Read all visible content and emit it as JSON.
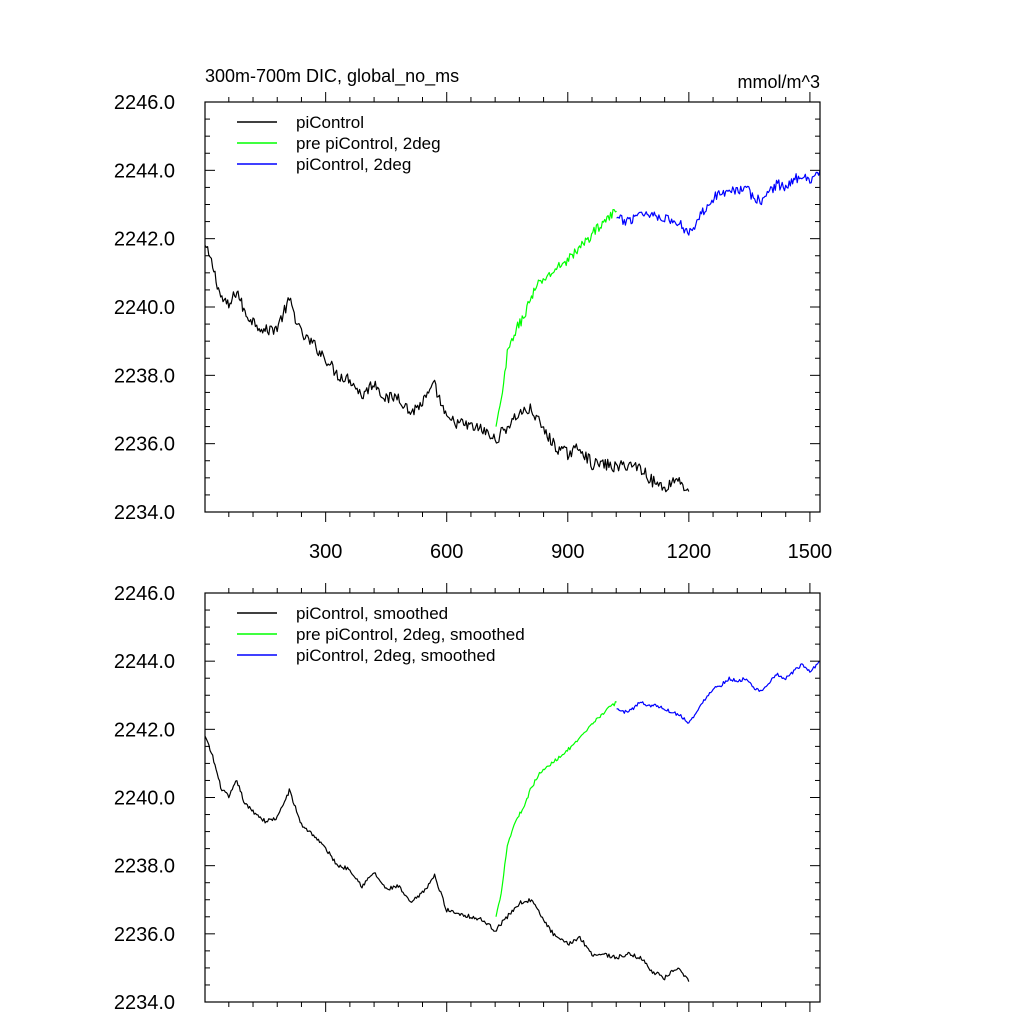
{
  "colors": {
    "piControl": "#000000",
    "pre_piControl_2deg": "#00ff00",
    "piControl_2deg": "#0000ff",
    "axis": "#000000"
  },
  "chart_data": [
    {
      "type": "line",
      "title": "300m-700m DIC, global_no_ms",
      "units": "mmol/m^3",
      "xlim": [
        1,
        1525
      ],
      "ylim": [
        2234.0,
        2246.0
      ],
      "xticks": [
        300,
        600,
        900,
        1200,
        1500
      ],
      "xtick_labels": [
        "300",
        "600",
        "900",
        "1200",
        "1500"
      ],
      "yticks": [
        2234.0,
        2236.0,
        2238.0,
        2240.0,
        2242.0,
        2244.0,
        2246.0
      ],
      "ytick_labels": [
        "2234.0",
        "2236.0",
        "2238.0",
        "2240.0",
        "2242.0",
        "2244.0",
        "2246.0"
      ],
      "legend_position": "top-left",
      "series": [
        {
          "name": "piControl",
          "color": "#000000",
          "x": [
            1,
            20,
            40,
            60,
            80,
            100,
            120,
            150,
            180,
            210,
            240,
            270,
            300,
            330,
            360,
            390,
            420,
            450,
            480,
            510,
            540,
            570,
            600,
            630,
            660,
            690,
            720,
            750,
            780,
            810,
            840,
            870,
            900,
            930,
            960,
            990,
            1020,
            1050,
            1080,
            1110,
            1140,
            1170,
            1200
          ],
          "y": [
            2241.8,
            2241.2,
            2240.3,
            2240.0,
            2240.5,
            2239.8,
            2239.6,
            2239.3,
            2239.4,
            2240.2,
            2239.2,
            2238.9,
            2238.5,
            2238.0,
            2237.9,
            2237.4,
            2237.8,
            2237.3,
            2237.4,
            2236.9,
            2237.2,
            2237.7,
            2236.7,
            2236.6,
            2236.5,
            2236.4,
            2236.1,
            2236.5,
            2236.9,
            2237.0,
            2236.4,
            2235.9,
            2235.7,
            2235.9,
            2235.4,
            2235.4,
            2235.3,
            2235.4,
            2235.3,
            2234.9,
            2234.7,
            2235.0,
            2234.6
          ],
          "noise": 0.35
        },
        {
          "name": "pre piControl, 2deg",
          "color": "#00ff00",
          "x": [
            722,
            735,
            750,
            770,
            790,
            810,
            830,
            860,
            890,
            920,
            950,
            980,
            1000,
            1021
          ],
          "y": [
            2236.5,
            2237.2,
            2238.6,
            2239.3,
            2239.7,
            2240.3,
            2240.7,
            2241.0,
            2241.3,
            2241.6,
            2242.0,
            2242.4,
            2242.6,
            2242.8
          ],
          "noise": 0.3
        },
        {
          "name": "piControl, 2deg",
          "color": "#0000ff",
          "x": [
            1021,
            1040,
            1060,
            1080,
            1100,
            1120,
            1140,
            1160,
            1180,
            1200,
            1220,
            1240,
            1260,
            1280,
            1300,
            1320,
            1340,
            1360,
            1380,
            1400,
            1420,
            1440,
            1460,
            1480,
            1500,
            1525
          ],
          "y": [
            2242.6,
            2242.5,
            2242.6,
            2242.8,
            2242.7,
            2242.7,
            2242.6,
            2242.5,
            2242.4,
            2242.2,
            2242.5,
            2242.9,
            2243.2,
            2243.3,
            2243.5,
            2243.4,
            2243.5,
            2243.2,
            2243.1,
            2243.4,
            2243.6,
            2243.5,
            2243.7,
            2243.9,
            2243.7,
            2244.0
          ],
          "noise": 0.3
        }
      ]
    },
    {
      "type": "line",
      "title": "",
      "units": "",
      "xlim": [
        1,
        1525
      ],
      "ylim": [
        2234.0,
        2246.0
      ],
      "xticks": [
        300,
        600,
        900,
        1200,
        1500
      ],
      "xtick_labels": [],
      "yticks": [
        2234.0,
        2236.0,
        2238.0,
        2240.0,
        2242.0,
        2244.0,
        2246.0
      ],
      "ytick_labels": [
        "2234.0",
        "2236.0",
        "2238.0",
        "2240.0",
        "2242.0",
        "2244.0",
        "2246.0"
      ],
      "legend_position": "top-left",
      "series": [
        {
          "name": "piControl, smoothed",
          "color": "#000000",
          "x": [
            1,
            20,
            40,
            60,
            80,
            100,
            120,
            150,
            180,
            210,
            240,
            270,
            300,
            330,
            360,
            390,
            420,
            450,
            480,
            510,
            540,
            570,
            600,
            630,
            660,
            690,
            720,
            750,
            780,
            810,
            840,
            870,
            900,
            930,
            960,
            990,
            1020,
            1050,
            1080,
            1110,
            1140,
            1170,
            1200
          ],
          "y": [
            2241.8,
            2241.2,
            2240.3,
            2240.0,
            2240.5,
            2239.8,
            2239.6,
            2239.3,
            2239.4,
            2240.2,
            2239.2,
            2238.9,
            2238.5,
            2238.0,
            2237.9,
            2237.4,
            2237.8,
            2237.3,
            2237.4,
            2236.9,
            2237.2,
            2237.7,
            2236.7,
            2236.6,
            2236.5,
            2236.4,
            2236.1,
            2236.5,
            2236.9,
            2237.0,
            2236.4,
            2235.9,
            2235.7,
            2235.9,
            2235.4,
            2235.4,
            2235.3,
            2235.4,
            2235.3,
            2234.9,
            2234.7,
            2235.0,
            2234.6
          ],
          "noise": 0.12
        },
        {
          "name": "pre piControl, 2deg, smoothed",
          "color": "#00ff00",
          "x": [
            722,
            735,
            750,
            770,
            790,
            810,
            830,
            860,
            890,
            920,
            950,
            980,
            1000,
            1021
          ],
          "y": [
            2236.5,
            2237.2,
            2238.6,
            2239.3,
            2239.7,
            2240.3,
            2240.7,
            2241.0,
            2241.3,
            2241.6,
            2242.0,
            2242.4,
            2242.6,
            2242.8
          ],
          "noise": 0.1
        },
        {
          "name": "piControl, 2deg, smoothed",
          "color": "#0000ff",
          "x": [
            1021,
            1040,
            1060,
            1080,
            1100,
            1120,
            1140,
            1160,
            1180,
            1200,
            1220,
            1240,
            1260,
            1280,
            1300,
            1320,
            1340,
            1360,
            1380,
            1400,
            1420,
            1440,
            1460,
            1480,
            1500,
            1525
          ],
          "y": [
            2242.6,
            2242.5,
            2242.6,
            2242.8,
            2242.7,
            2242.7,
            2242.6,
            2242.5,
            2242.4,
            2242.2,
            2242.5,
            2242.9,
            2243.2,
            2243.3,
            2243.5,
            2243.4,
            2243.5,
            2243.2,
            2243.1,
            2243.4,
            2243.6,
            2243.5,
            2243.7,
            2243.9,
            2243.7,
            2244.0
          ],
          "noise": 0.1
        }
      ]
    }
  ]
}
